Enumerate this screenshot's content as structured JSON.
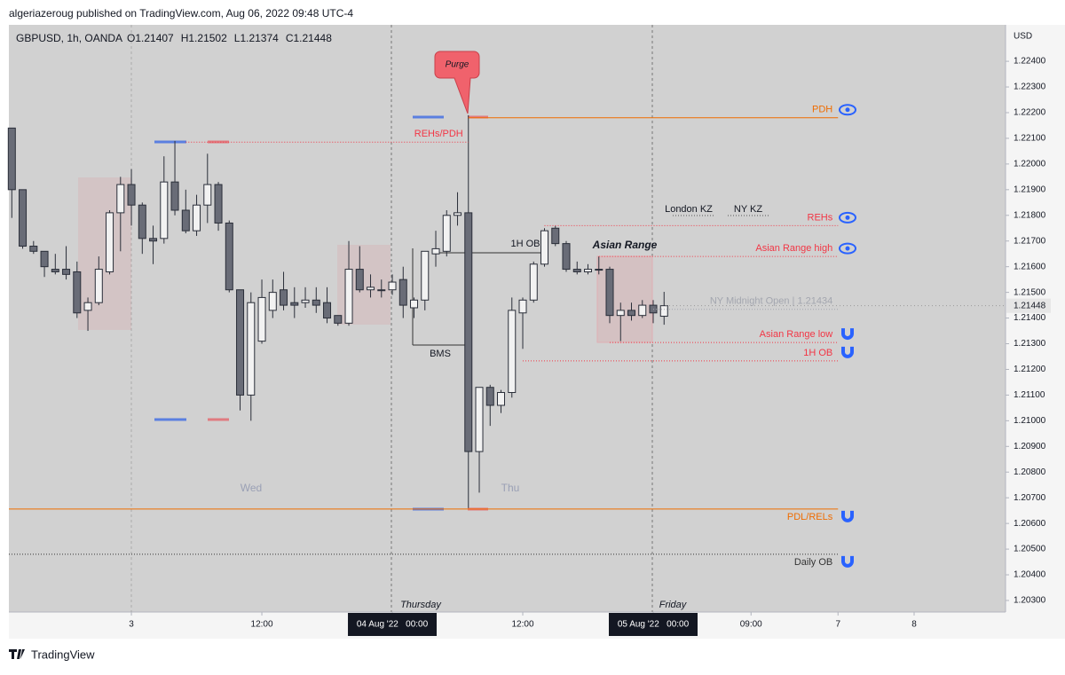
{
  "header": {
    "publisher": "algeriazeroug published on TradingView.com, Aug 06, 2022 09:48 UTC-4",
    "footer": "TradingView"
  },
  "chart_data": {
    "type": "candlestick",
    "symbol": "GBPUSD, 1h, OANDA",
    "ohlc_legend": [
      "O1.21407",
      "H1.21502",
      "L1.21374",
      "C1.21448"
    ],
    "currency": "USD",
    "up_color": "#f2f2f2",
    "down_color": "#696c77",
    "x": [
      -11,
      -10,
      -9,
      -8,
      -7,
      -6,
      -5,
      -4,
      -3,
      -2,
      -1,
      0,
      1,
      2,
      3,
      4,
      5,
      6,
      7,
      8,
      9,
      10,
      11,
      12,
      13,
      14,
      15,
      16,
      17,
      18,
      19,
      20,
      21,
      22,
      23,
      24,
      25,
      26,
      27,
      28,
      29,
      30,
      31,
      32,
      33,
      34,
      35,
      36,
      37,
      38,
      39,
      40,
      41,
      42,
      43,
      44,
      45,
      46,
      47,
      48,
      49
    ],
    "open": [
      1.2214,
      1.219,
      1.2168,
      1.2166,
      1.2159,
      1.2159,
      1.2158,
      1.2143,
      1.2146,
      1.2158,
      1.2181,
      1.2192,
      1.2184,
      1.2171,
      1.2171,
      1.2193,
      1.2182,
      1.2174,
      1.2184,
      1.2192,
      1.2177,
      1.2151,
      1.211,
      1.2131,
      1.2143,
      1.2151,
      1.2146,
      1.2146,
      1.2147,
      1.2146,
      1.2141,
      1.2138,
      1.2159,
      1.2151,
      1.2151,
      1.2151,
      1.2155,
      1.2144,
      1.2147,
      1.2165,
      1.2166,
      1.218,
      1.2181,
      1.2088,
      1.2113,
      1.2106,
      1.2111,
      1.2142,
      1.2147,
      1.2161,
      1.2175,
      1.2169,
      1.2159,
      1.2158,
      1.2159,
      1.2159,
      1.2141,
      1.2143,
      1.2141,
      1.2145,
      1.21407
    ],
    "high": [
      1.2214,
      1.219,
      1.217,
      1.2166,
      1.2165,
      1.2168,
      1.2162,
      1.2148,
      1.2164,
      1.2182,
      1.2195,
      1.2198,
      1.2185,
      1.2176,
      1.2203,
      1.2209,
      1.219,
      1.2188,
      1.2204,
      1.2193,
      1.2178,
      1.2151,
      1.215,
      1.2155,
      1.2155,
      1.2158,
      1.2152,
      1.2152,
      1.2152,
      1.2152,
      1.2141,
      1.217,
      1.2168,
      1.2157,
      1.2155,
      1.2157,
      1.216,
      1.2148,
      1.2166,
      1.2174,
      1.2182,
      1.2189,
      1.2219,
      1.2113,
      1.2114,
      1.2112,
      1.2148,
      1.2148,
      1.2162,
      1.2175,
      1.2176,
      1.217,
      1.2162,
      1.2161,
      1.2164,
      1.216,
      1.2146,
      1.2146,
      1.2147,
      1.2147,
      1.21502
    ],
    "low": [
      1.2179,
      1.2167,
      1.2165,
      1.2156,
      1.2157,
      1.2155,
      1.214,
      1.2135,
      1.2145,
      1.2157,
      1.2166,
      1.2176,
      1.2165,
      1.2161,
      1.2169,
      1.218,
      1.2173,
      1.2172,
      1.2177,
      1.2174,
      1.215,
      1.2104,
      1.21,
      1.213,
      1.214,
      1.2143,
      1.214,
      1.2144,
      1.2142,
      1.2138,
      1.2137,
      1.2137,
      1.215,
      1.2148,
      1.2148,
      1.2149,
      1.214,
      1.214,
      1.2143,
      1.216,
      1.2164,
      1.2176,
      1.2066,
      1.2072,
      1.2098,
      1.2103,
      1.2109,
      1.2128,
      1.2146,
      1.216,
      1.2168,
      1.2158,
      1.2157,
      1.2157,
      1.2157,
      1.2138,
      1.2131,
      1.2139,
      1.214,
      1.2138,
      1.21374
    ],
    "close": [
      1.219,
      1.2168,
      1.2166,
      1.216,
      1.2158,
      1.2157,
      1.2142,
      1.2146,
      1.2159,
      1.2181,
      1.2192,
      1.2184,
      1.2171,
      1.217,
      1.2193,
      1.2182,
      1.2174,
      1.2184,
      1.2192,
      1.2177,
      1.2151,
      1.211,
      1.2146,
      1.2148,
      1.215,
      1.2145,
      1.2145,
      1.2147,
      1.2145,
      1.214,
      1.2138,
      1.2159,
      1.2151,
      1.2152,
      1.2151,
      1.2154,
      1.2145,
      1.2147,
      1.2166,
      1.2167,
      1.218,
      1.2181,
      1.2088,
      1.2113,
      1.2106,
      1.2111,
      1.2143,
      1.2147,
      1.2161,
      1.2174,
      1.2169,
      1.2159,
      1.2158,
      1.2159,
      1.2159,
      1.2141,
      1.2143,
      1.2141,
      1.2145,
      1.2142,
      1.21448
    ],
    "xlim": [
      -11.27,
      80.41
    ],
    "ylim": [
      1.20255,
      1.22542
    ],
    "xticks": [
      {
        "value": 0,
        "label": "3"
      },
      {
        "value": 12,
        "label": "12:00"
      },
      {
        "value": 24,
        "label": "04 Aug '22   00:00",
        "highlight": true
      },
      {
        "value": 36,
        "label": "12:00"
      },
      {
        "value": 48,
        "label": "05 Aug '22   00:00",
        "highlight": true
      },
      {
        "value": 57,
        "label": "09:00"
      },
      {
        "value": 65,
        "label": "7"
      },
      {
        "value": 72,
        "label": "8"
      }
    ],
    "yticks": [
      {
        "value": 1.224,
        "label": "1.22400"
      },
      {
        "value": 1.223,
        "label": "1.22300"
      },
      {
        "value": 1.222,
        "label": "1.22200"
      },
      {
        "value": 1.221,
        "label": "1.22100"
      },
      {
        "value": 1.22,
        "label": "1.22000"
      },
      {
        "value": 1.219,
        "label": "1.21900"
      },
      {
        "value": 1.218,
        "label": "1.21800"
      },
      {
        "value": 1.217,
        "label": "1.21700"
      },
      {
        "value": 1.216,
        "label": "1.21600"
      },
      {
        "value": 1.215,
        "label": "1.21500"
      },
      {
        "value": 1.214,
        "label": "1.21400"
      },
      {
        "value": 1.213,
        "label": "1.21300"
      },
      {
        "value": 1.212,
        "label": "1.21200"
      },
      {
        "value": 1.211,
        "label": "1.21100"
      },
      {
        "value": 1.21,
        "label": "1.21000"
      },
      {
        "value": 1.209,
        "label": "1.20900"
      },
      {
        "value": 1.208,
        "label": "1.20800"
      },
      {
        "value": 1.207,
        "label": "1.20700"
      },
      {
        "value": 1.206,
        "label": "1.20600"
      },
      {
        "value": 1.205,
        "label": "1.20500"
      },
      {
        "value": 1.204,
        "label": "1.20400"
      },
      {
        "value": 1.203,
        "label": "1.20300"
      }
    ],
    "levels": [
      {
        "label": "PDH",
        "price": 1.2218,
        "from": 31,
        "to": 65,
        "color": "#ef6c00",
        "style": "solid",
        "icon": "eye"
      },
      {
        "label": "REHs/PDH",
        "price": 1.22085,
        "from": 5,
        "to": 31,
        "color": "#f23645",
        "style": "dotted"
      },
      {
        "label": "REHs",
        "price": 1.2176,
        "from": 38,
        "to": 65,
        "color": "#f23645",
        "style": "dotted",
        "icon": "eye"
      },
      {
        "label": "Asian Range high",
        "price": 1.2164,
        "from": 43,
        "to": 65,
        "color": "#f23645",
        "style": "dotted",
        "icon": "eye"
      },
      {
        "label": "NY Midnight Open | 1.21434",
        "price": 1.21434,
        "from": 48,
        "to": 65,
        "color": "#a3a6af",
        "style": "dotted"
      },
      {
        "label": "Asian Range low",
        "price": 1.21305,
        "from": 44,
        "to": 65,
        "color": "#f23645",
        "style": "dotted",
        "icon": "magnet"
      },
      {
        "label": "1H OB",
        "price": 1.21233,
        "from": 36,
        "to": 65,
        "color": "#f23645",
        "style": "dotted",
        "icon": "magnet"
      },
      {
        "label": "PDL/RELs",
        "price": 1.20656,
        "from": -11.27,
        "to": 65,
        "color": "#ef6c00",
        "style": "solid",
        "icon": "magnet"
      },
      {
        "label": "Daily OB",
        "price": 1.2048,
        "from": -11.27,
        "to": 65,
        "color": "#333333",
        "style": "dotted",
        "icon": "magnet"
      }
    ],
    "annotations": {
      "purge": "Purge",
      "london": "London KZ",
      "ny": "NY KZ",
      "asian_range": "Asian Range",
      "ob": "1H OB",
      "bms": "BMS",
      "wed": "Wed",
      "thu": "Thu",
      "thursday": "Thursday",
      "friday": "Friday"
    }
  }
}
